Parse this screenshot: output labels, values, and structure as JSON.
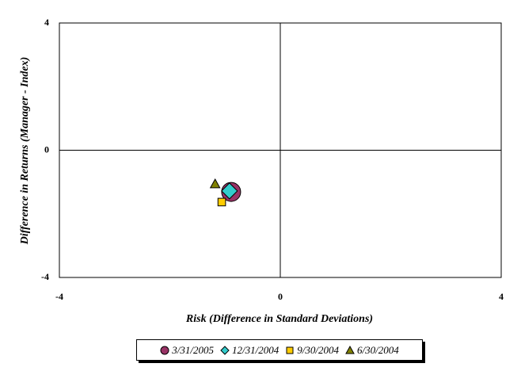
{
  "chart_data": {
    "type": "scatter",
    "x_label": "Risk (Difference in Standard Deviations)",
    "y_label": "Difference in Returns (Manager - Index)",
    "xlim": [
      -4,
      4
    ],
    "xticks": [
      -4,
      0,
      4
    ],
    "ylim": [
      -4,
      4
    ],
    "yticks": [
      -4,
      0,
      4
    ],
    "grid": true,
    "series": [
      {
        "name": "3/31/2005",
        "color": "#993366",
        "marker": "circle",
        "x": [
          -0.89
        ],
        "values": [
          -1.31
        ]
      },
      {
        "name": "12/31/2004",
        "color": "#33cccc",
        "marker": "diamond",
        "x": [
          -0.92
        ],
        "values": [
          -1.28
        ]
      },
      {
        "name": "9/30/2004",
        "color": "#ffcc00",
        "marker": "square",
        "x": [
          -1.06
        ],
        "values": [
          -1.63
        ]
      },
      {
        "name": "6/30/2004",
        "color": "#808000",
        "marker": "triangle",
        "x": [
          -1.18
        ],
        "values": [
          -1.06
        ]
      }
    ]
  }
}
